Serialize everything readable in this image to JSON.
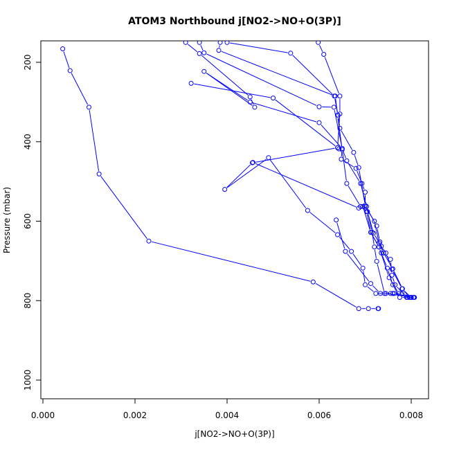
{
  "chart_data": {
    "type": "line",
    "title": "ATOM3 Northbound j[NO2->NO+O(3P)]",
    "xlabel": "j[NO2->NO+O(3P)]",
    "ylabel": "Pressure (mbar)",
    "xlim": [
      0.0,
      0.0083
    ],
    "ylim": [
      1045,
      150
    ],
    "y_reversed": true,
    "x_ticks": [
      0.0,
      0.002,
      0.004,
      0.006,
      0.008
    ],
    "x_tick_labels": [
      "0.000",
      "0.002",
      "0.004",
      "0.006",
      "0.008"
    ],
    "y_ticks": [
      200,
      400,
      600,
      800,
      1000
    ],
    "y_tick_labels": [
      "200",
      "400",
      "600",
      "800",
      "1000"
    ],
    "grid": false,
    "legend": "none",
    "color": "#0000ff",
    "series": [
      {
        "points": [
          [
            0.00043,
            166
          ],
          [
            0.00059,
            221
          ],
          [
            0.001,
            313
          ],
          [
            0.00122,
            481
          ],
          [
            0.0023,
            650
          ],
          [
            0.00587,
            753
          ],
          [
            0.00686,
            820
          ],
          [
            0.00707,
            820
          ],
          [
            0.00728,
            820
          ],
          [
            0.00729,
            820
          ]
        ]
      },
      {
        "points": [
          [
            0.0031,
            150
          ],
          [
            0.0034,
            178
          ],
          [
            0.0045,
            287
          ],
          [
            0.0046,
            313
          ],
          [
            0.0035,
            223
          ],
          [
            0.0045,
            300
          ],
          [
            0.006,
            352
          ],
          [
            0.0065,
            417
          ],
          [
            0.0066,
            448
          ],
          [
            0.0069,
            505
          ],
          [
            0.00703,
            563
          ],
          [
            0.00715,
            628
          ],
          [
            0.0072,
            665
          ],
          [
            0.00725,
            701
          ],
          [
            0.00742,
            782
          ],
          [
            0.0076,
            782
          ],
          [
            0.0078,
            782
          ],
          [
            0.008,
            792
          ]
        ]
      },
      {
        "points": [
          [
            0.0034,
            150
          ],
          [
            0.0035,
            176
          ],
          [
            0.006,
            312
          ],
          [
            0.00632,
            313
          ],
          [
            0.0065,
            417
          ],
          [
            0.00648,
            444
          ],
          [
            0.0068,
            467
          ],
          [
            0.00693,
            505
          ],
          [
            0.007,
            527
          ],
          [
            0.007,
            563
          ],
          [
            0.0072,
            600
          ],
          [
            0.0073,
            655
          ],
          [
            0.0074,
            680
          ],
          [
            0.0076,
            720
          ],
          [
            0.00781,
            770
          ],
          [
            0.00796,
            792
          ]
        ]
      },
      {
        "points": [
          [
            0.00385,
            150
          ],
          [
            0.00382,
            170
          ],
          [
            0.00635,
            285
          ],
          [
            0.0064,
            333
          ],
          [
            0.0065,
            420
          ],
          [
            0.0066,
            505
          ],
          [
            0.0069,
            563
          ],
          [
            0.00703,
            576
          ],
          [
            0.00712,
            628
          ],
          [
            0.0073,
            665
          ],
          [
            0.00735,
            680
          ],
          [
            0.00748,
            718
          ],
          [
            0.0076,
            760
          ],
          [
            0.00775,
            792
          ],
          [
            0.00805,
            792
          ]
        ]
      },
      {
        "points": [
          [
            0.004,
            150
          ],
          [
            0.00538,
            177
          ],
          [
            0.00633,
            285
          ],
          [
            0.00641,
            333
          ],
          [
            0.00645,
            366
          ],
          [
            0.00675,
            427
          ],
          [
            0.00686,
            465
          ],
          [
            0.007,
            560
          ],
          [
            0.00725,
            612
          ],
          [
            0.00732,
            652
          ],
          [
            0.0074,
            680
          ],
          [
            0.00755,
            696
          ],
          [
            0.00758,
            736
          ],
          [
            0.00765,
            760
          ],
          [
            0.0079,
            792
          ],
          [
            0.00806,
            792
          ]
        ]
      },
      {
        "points": [
          [
            0.00598,
            150
          ],
          [
            0.0061,
            180
          ],
          [
            0.00645,
            285
          ],
          [
            0.00645,
            330
          ],
          [
            0.0064,
            415
          ],
          [
            0.00455,
            453
          ],
          [
            0.00395,
            520
          ],
          [
            0.0049,
            440
          ],
          [
            0.00575,
            573
          ],
          [
            0.0064,
            634
          ],
          [
            0.0067,
            676
          ],
          [
            0.00695,
            718
          ],
          [
            0.007,
            760
          ],
          [
            0.00723,
            782
          ],
          [
            0.00745,
            782
          ],
          [
            0.00805,
            792
          ]
        ]
      },
      {
        "points": [
          [
            0.00322,
            253
          ],
          [
            0.005,
            290
          ],
          [
            0.0064,
            415
          ],
          [
            0.00643,
            418
          ]
        ]
      },
      {
        "points": [
          [
            0.00456,
            452
          ],
          [
            0.00686,
            567
          ],
          [
            0.0069,
            563
          ],
          [
            0.00705,
            576
          ],
          [
            0.00718,
            630
          ],
          [
            0.00735,
            663
          ],
          [
            0.00745,
            680
          ],
          [
            0.00758,
            721
          ],
          [
            0.0078,
            770
          ],
          [
            0.008,
            792
          ]
        ]
      },
      {
        "points": [
          [
            0.00637,
            597
          ],
          [
            0.00657,
            676
          ],
          [
            0.00712,
            757
          ],
          [
            0.00733,
            782
          ],
          [
            0.00755,
            782
          ],
          [
            0.00763,
            782
          ],
          [
            0.008,
            792
          ]
        ]
      },
      {
        "points": [
          [
            0.00695,
            563
          ],
          [
            0.00712,
            628
          ],
          [
            0.0073,
            665
          ],
          [
            0.00752,
            742
          ],
          [
            0.00773,
            782
          ],
          [
            0.00792,
            792
          ],
          [
            0.00807,
            792
          ]
        ]
      }
    ]
  }
}
